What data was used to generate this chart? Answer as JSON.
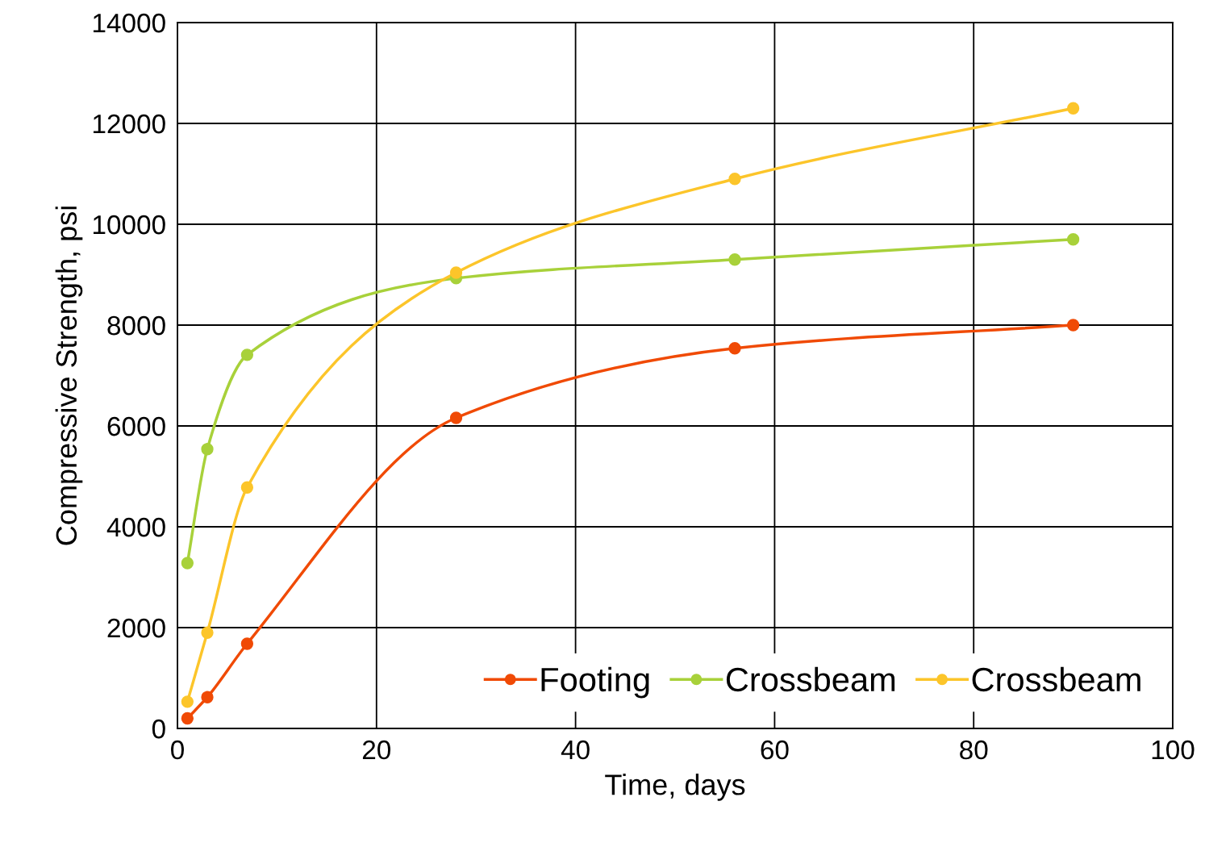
{
  "chart_data": {
    "type": "line",
    "xlabel": "Time, days",
    "ylabel": "Compressive Strength, psi",
    "x": [
      1,
      3,
      7,
      28,
      56,
      90
    ],
    "series": [
      {
        "name": "Footing",
        "color": "#f04a05",
        "values": [
          200,
          620,
          1680,
          6160,
          7540,
          8000
        ]
      },
      {
        "name": "Crossbeam",
        "color": "#a8d13a",
        "values": [
          3280,
          5540,
          7410,
          8930,
          9300,
          9700
        ]
      },
      {
        "name": "Crossbeam",
        "color": "#fcc52a",
        "values": [
          530,
          1900,
          4780,
          9040,
          10900,
          12300
        ]
      }
    ],
    "xlim": [
      0,
      100
    ],
    "xticks": [
      0,
      20,
      40,
      60,
      80,
      100
    ],
    "ylim": [
      0,
      14000
    ],
    "yticks": [
      0,
      2000,
      4000,
      6000,
      8000,
      10000,
      12000,
      14000
    ],
    "grid": true,
    "legend": "bottom right",
    "marker": "circle",
    "line_style": "solid"
  }
}
